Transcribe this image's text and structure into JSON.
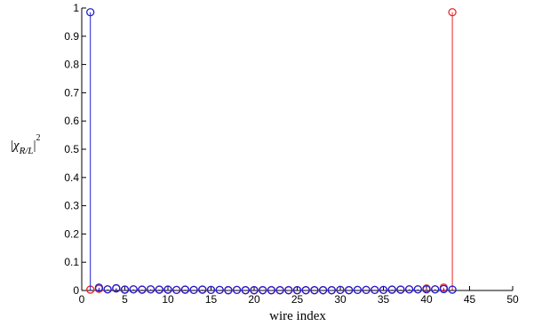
{
  "chart_data": {
    "type": "stem",
    "title": "",
    "xlabel": "wire index",
    "ylabel_parts": {
      "pipe_left": "|",
      "chi": "χ",
      "subscript": "R/L",
      "pipe_right": "|",
      "power": "2"
    },
    "xlim": [
      0,
      50
    ],
    "ylim": [
      0,
      1
    ],
    "xticks": [
      0,
      5,
      10,
      15,
      20,
      25,
      30,
      35,
      40,
      45,
      50
    ],
    "yticks": [
      0,
      0.1,
      0.2,
      0.3,
      0.4,
      0.5,
      0.6,
      0.7,
      0.8,
      0.9,
      1
    ],
    "ytick_labels": [
      "0",
      "0.1",
      "0.2",
      "0.3",
      "0.4",
      "0.5",
      "0.6",
      "0.7",
      "0.8",
      "0.9",
      "1"
    ],
    "grid": false,
    "marker": "circle",
    "series": [
      {
        "color": "#e8262b",
        "x": [
          1,
          2,
          3,
          4,
          5,
          6,
          7,
          8,
          9,
          10,
          11,
          12,
          13,
          14,
          15,
          16,
          17,
          18,
          19,
          20,
          21,
          22,
          23,
          24,
          25,
          26,
          27,
          28,
          29,
          30,
          31,
          32,
          33,
          34,
          35,
          36,
          37,
          38,
          39,
          40,
          41,
          42,
          43
        ],
        "y": [
          0.003,
          0.006,
          0.004,
          0.007,
          0.003,
          0.004,
          0.003,
          0.004,
          0.003,
          0.003,
          0.002,
          0.003,
          0.002,
          0.003,
          0.002,
          0.002,
          0.001,
          0.002,
          0.001,
          0.001,
          0.001,
          0.001,
          0.001,
          0.001,
          0.001,
          0.001,
          0.001,
          0.001,
          0.001,
          0.002,
          0.001,
          0.002,
          0.002,
          0.002,
          0.002,
          0.003,
          0.003,
          0.004,
          0.004,
          0.007,
          0.004,
          0.01,
          0.985
        ]
      },
      {
        "color": "#1f1fd4",
        "x": [
          1,
          2,
          3,
          4,
          5,
          6,
          7,
          8,
          9,
          10,
          11,
          12,
          13,
          14,
          15,
          16,
          17,
          18,
          19,
          20,
          21,
          22,
          23,
          24,
          25,
          26,
          27,
          28,
          29,
          30,
          31,
          32,
          33,
          34,
          35,
          36,
          37,
          38,
          39,
          40,
          41,
          42,
          43
        ],
        "y": [
          0.985,
          0.01,
          0.004,
          0.008,
          0.003,
          0.004,
          0.003,
          0.004,
          0.003,
          0.003,
          0.002,
          0.003,
          0.002,
          0.003,
          0.002,
          0.002,
          0.001,
          0.002,
          0.001,
          0.001,
          0.001,
          0.001,
          0.001,
          0.001,
          0.001,
          0.001,
          0.001,
          0.001,
          0.001,
          0.002,
          0.001,
          0.002,
          0.002,
          0.002,
          0.002,
          0.003,
          0.003,
          0.004,
          0.004,
          0.004,
          0.004,
          0.005,
          0.003
        ]
      }
    ]
  }
}
